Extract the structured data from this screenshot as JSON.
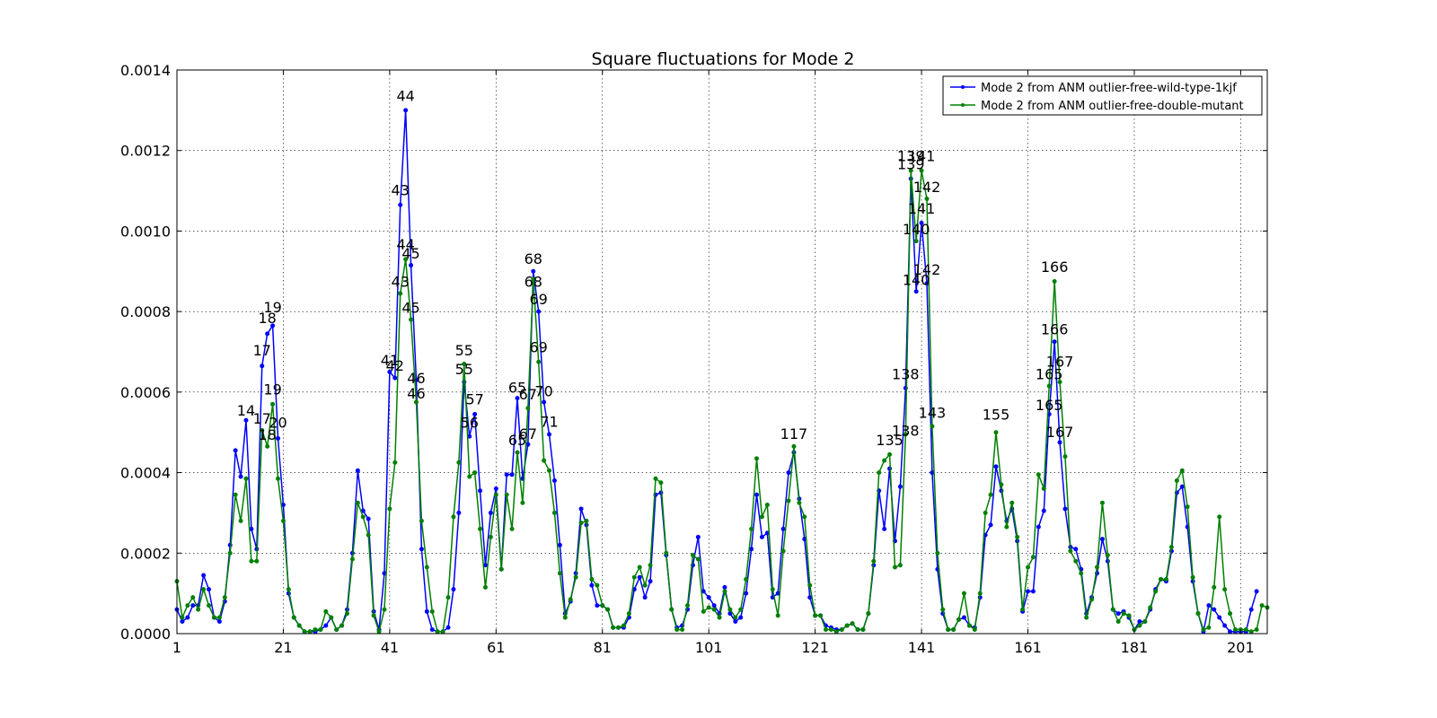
{
  "chart_data": {
    "type": "line",
    "title": "Square fluctuations for Mode 2",
    "xlabel": "",
    "ylabel": "",
    "xlim": [
      1,
      206
    ],
    "ylim": [
      0,
      0.0014
    ],
    "x_ticks": [
      "1",
      "21",
      "41",
      "61",
      "81",
      "101",
      "121",
      "141",
      "161",
      "181",
      "201"
    ],
    "x_tick_values": [
      1,
      21,
      41,
      61,
      81,
      101,
      121,
      141,
      161,
      181,
      201
    ],
    "y_ticks": [
      "0.0000",
      "0.0002",
      "0.0004",
      "0.0006",
      "0.0008",
      "0.0010",
      "0.0012",
      "0.0014"
    ],
    "y_tick_values": [
      0,
      0.0002,
      0.0004,
      0.0006,
      0.0008,
      0.001,
      0.0012,
      0.0014
    ],
    "grid": true,
    "legend_position": "top-right",
    "x_start": 1,
    "series": [
      {
        "name": "Mode 2 from ANM outlier-free-wild-type-1kjf",
        "color": "#0000ff",
        "values": [
          6e-05,
          3e-05,
          4e-05,
          7e-05,
          7e-05,
          0.000145,
          0.00011,
          4e-05,
          3e-05,
          8e-05,
          0.00022,
          0.000455,
          0.00039,
          0.00053,
          0.00026,
          0.00021,
          0.000665,
          0.000745,
          0.000765,
          0.000485,
          0.00032,
          0.0001,
          4e-05,
          2e-05,
          5e-06,
          5e-06,
          5e-06,
          1e-05,
          2e-05,
          4e-05,
          1e-05,
          2e-05,
          6e-05,
          0.0002,
          0.000405,
          0.000305,
          0.000285,
          5.5e-05,
          1e-05,
          0.00015,
          0.00065,
          0.000635,
          0.001065,
          0.0013,
          0.000915,
          0.00063,
          0.00021,
          5.5e-05,
          1e-05,
          5e-06,
          5e-06,
          1.5e-05,
          0.00011,
          0.0003,
          0.000625,
          0.00049,
          0.000545,
          0.000355,
          0.00017,
          0.0003,
          0.00036,
          0.00016,
          0.000395,
          0.000395,
          0.000585,
          0.000385,
          0.00047,
          0.0009,
          0.0008,
          0.000575,
          0.000495,
          0.00038,
          0.00022,
          5e-05,
          8e-05,
          0.00015,
          0.00031,
          0.00027,
          0.00012,
          7e-05,
          7e-05,
          6e-05,
          1.5e-05,
          1.5e-05,
          1.5e-05,
          4e-05,
          0.00011,
          0.00014,
          9e-05,
          0.00013,
          0.000345,
          0.00035,
          0.000195,
          6e-05,
          1.5e-05,
          2e-05,
          6e-05,
          0.00017,
          0.00024,
          0.000105,
          9e-05,
          7e-05,
          5e-05,
          0.000115,
          5e-05,
          3e-05,
          4e-05,
          0.0001,
          0.00021,
          0.000345,
          0.00024,
          0.00025,
          9e-05,
          0.0001,
          0.00026,
          0.0004,
          0.00045,
          0.000335,
          0.000235,
          9e-05,
          4.5e-05,
          4.5e-05,
          2e-05,
          1.5e-05,
          1e-05,
          1e-05,
          2e-05,
          2.5e-05,
          1e-05,
          1e-05,
          5e-05,
          0.00017,
          0.000355,
          0.00026,
          0.00041,
          0.00023,
          0.000365,
          0.00061,
          0.00113,
          0.00085,
          0.00102,
          0.00087,
          0.0004,
          0.00016,
          5e-05,
          1e-05,
          1e-05,
          3.5e-05,
          4e-05,
          2e-05,
          1.5e-05,
          9e-05,
          0.000245,
          0.00027,
          0.000415,
          0.000355,
          0.00028,
          0.00031,
          0.00023,
          5.5e-05,
          0.000105,
          0.000105,
          0.000265,
          0.000305,
          0.000545,
          0.000725,
          0.000475,
          0.00031,
          0.000215,
          0.00021,
          0.00016,
          5e-05,
          9e-05,
          0.00015,
          0.000235,
          0.00018,
          6e-05,
          5e-05,
          5.5e-05,
          4e-05,
          1e-05,
          3e-05,
          3e-05,
          6e-05,
          0.00011,
          0.000135,
          0.00013,
          0.000205,
          0.00035,
          0.000365,
          0.000265,
          0.00013,
          5e-05,
          5e-06,
          7e-05,
          6e-05,
          4e-05,
          2e-05,
          5e-06,
          5e-06,
          5e-06,
          5e-06,
          6e-05,
          0.000105
        ]
      },
      {
        "name": "Mode 2 from ANM outlier-free-double-mutant",
        "color": "#008000",
        "values": [
          0.00013,
          4e-05,
          7e-05,
          9e-05,
          6e-05,
          0.00011,
          7e-05,
          4e-05,
          4e-05,
          9e-05,
          0.0002,
          0.000345,
          0.00028,
          0.000385,
          0.00018,
          0.00018,
          0.000505,
          0.000465,
          0.00057,
          0.000385,
          0.00028,
          0.00011,
          4e-05,
          2e-05,
          5e-06,
          5e-06,
          1e-05,
          1e-05,
          5.5e-05,
          4e-05,
          1e-05,
          2e-05,
          5e-05,
          0.000185,
          0.000325,
          0.00029,
          0.000245,
          4.5e-05,
          5e-06,
          6e-05,
          0.00031,
          0.000425,
          0.000845,
          0.00093,
          0.00078,
          0.000575,
          0.00028,
          0.000165,
          5.5e-05,
          5e-06,
          5e-06,
          9e-05,
          0.00029,
          0.000425,
          0.00067,
          0.00039,
          0.0004,
          0.00026,
          0.000115,
          0.00024,
          0.000345,
          0.00016,
          0.000345,
          0.00026,
          0.00045,
          0.000325,
          0.00056,
          0.00088,
          0.000675,
          0.00043,
          0.000405,
          0.0003,
          0.00015,
          4e-05,
          8.5e-05,
          0.00014,
          0.000275,
          0.00028,
          0.000135,
          0.00012,
          7e-05,
          6e-05,
          1.5e-05,
          1.5e-05,
          2e-05,
          5e-05,
          0.00014,
          0.000165,
          0.00012,
          0.00017,
          0.000385,
          0.000375,
          0.0002,
          6e-05,
          1e-05,
          1e-05,
          7e-05,
          0.000195,
          0.000185,
          5.5e-05,
          6.5e-05,
          6e-05,
          4e-05,
          0.000105,
          6e-05,
          4e-05,
          6e-05,
          0.000135,
          0.00026,
          0.000435,
          0.00029,
          0.00032,
          0.00011,
          4.5e-05,
          0.000205,
          0.00033,
          0.000465,
          0.000325,
          0.00029,
          0.00012,
          4.5e-05,
          4.5e-05,
          1e-05,
          1e-05,
          5e-06,
          1e-05,
          2e-05,
          2.5e-05,
          1e-05,
          1e-05,
          5e-05,
          0.00018,
          0.0004,
          0.00043,
          0.000445,
          0.000165,
          0.00017,
          0.000495,
          0.00115,
          0.000975,
          0.00115,
          0.00108,
          0.000515,
          0.0002,
          6e-05,
          1e-05,
          1e-05,
          3.5e-05,
          0.0001,
          2e-05,
          1e-05,
          0.0001,
          0.0003,
          0.000345,
          0.0005,
          0.00037,
          0.000265,
          0.000325,
          0.00024,
          6e-05,
          0.000165,
          0.00019,
          0.000395,
          0.00036,
          0.000615,
          0.000875,
          0.000625,
          0.00044,
          0.000205,
          0.00018,
          0.00015,
          4e-05,
          8.5e-05,
          0.000165,
          0.000325,
          0.000195,
          6e-05,
          3e-05,
          5e-05,
          4.5e-05,
          1e-05,
          2e-05,
          3e-05,
          6.5e-05,
          0.000105,
          0.000135,
          0.000135,
          0.000215,
          0.00038,
          0.000405,
          0.000315,
          0.00014,
          5e-05,
          1e-05,
          1.5e-05,
          0.000115,
          0.00029,
          0.00011,
          5e-05,
          1e-05,
          1e-05,
          1e-05,
          5e-06,
          1e-05,
          7e-05,
          6.5e-05
        ]
      }
    ],
    "annotations": [
      {
        "text": "14",
        "x": 14,
        "y": 0.000555
      },
      {
        "text": "17",
        "x": 17,
        "y": 0.000705
      },
      {
        "text": "18",
        "x": 18,
        "y": 0.000785
      },
      {
        "text": "19",
        "x": 19,
        "y": 0.000812
      },
      {
        "text": "17",
        "x": 17,
        "y": 0.000535
      },
      {
        "text": "18",
        "x": 18,
        "y": 0.000495
      },
      {
        "text": "19",
        "x": 19,
        "y": 0.000607
      },
      {
        "text": "20",
        "x": 20,
        "y": 0.000525
      },
      {
        "text": "41",
        "x": 41,
        "y": 0.00068
      },
      {
        "text": "42",
        "x": 42,
        "y": 0.000667
      },
      {
        "text": "43",
        "x": 43,
        "y": 0.001102
      },
      {
        "text": "44",
        "x": 44,
        "y": 0.001337
      },
      {
        "text": "43",
        "x": 43,
        "y": 0.000875
      },
      {
        "text": "44",
        "x": 44,
        "y": 0.000967
      },
      {
        "text": "45",
        "x": 45,
        "y": 0.000945
      },
      {
        "text": "45",
        "x": 45,
        "y": 0.00081
      },
      {
        "text": "46",
        "x": 46,
        "y": 0.000635
      },
      {
        "text": "46",
        "x": 46,
        "y": 0.000598
      },
      {
        "text": "55",
        "x": 55,
        "y": 0.000705
      },
      {
        "text": "55",
        "x": 55,
        "y": 0.000658
      },
      {
        "text": "57",
        "x": 57,
        "y": 0.000583
      },
      {
        "text": "56",
        "x": 56,
        "y": 0.000525
      },
      {
        "text": "65",
        "x": 65,
        "y": 0.000612
      },
      {
        "text": "67",
        "x": 67,
        "y": 0.000595
      },
      {
        "text": "70",
        "x": 70,
        "y": 0.000603
      },
      {
        "text": "65",
        "x": 65,
        "y": 0.000482
      },
      {
        "text": "67",
        "x": 67,
        "y": 0.000497
      },
      {
        "text": "71",
        "x": 71,
        "y": 0.000527
      },
      {
        "text": "68",
        "x": 68,
        "y": 0.000932
      },
      {
        "text": "68",
        "x": 68,
        "y": 0.000875
      },
      {
        "text": "69",
        "x": 69,
        "y": 0.000832
      },
      {
        "text": "69",
        "x": 69,
        "y": 0.000712
      },
      {
        "text": "117",
        "x": 117,
        "y": 0.000497
      },
      {
        "text": "135",
        "x": 135,
        "y": 0.000482
      },
      {
        "text": "138",
        "x": 138,
        "y": 0.000645
      },
      {
        "text": "138",
        "x": 138,
        "y": 0.000505
      },
      {
        "text": "139",
        "x": 139,
        "y": 0.001187
      },
      {
        "text": "139",
        "x": 139,
        "y": 0.001167
      },
      {
        "text": "141",
        "x": 141,
        "y": 0.001187
      },
      {
        "text": "142",
        "x": 142,
        "y": 0.00111
      },
      {
        "text": "141",
        "x": 141,
        "y": 0.001057
      },
      {
        "text": "140",
        "x": 140,
        "y": 0.001005
      },
      {
        "text": "142",
        "x": 142,
        "y": 0.000905
      },
      {
        "text": "140",
        "x": 140,
        "y": 0.00088
      },
      {
        "text": "143",
        "x": 143,
        "y": 0.00055
      },
      {
        "text": "155",
        "x": 155,
        "y": 0.000545
      },
      {
        "text": "166",
        "x": 166,
        "y": 0.000912
      },
      {
        "text": "166",
        "x": 166,
        "y": 0.000757
      },
      {
        "text": "165",
        "x": 165,
        "y": 0.000645
      },
      {
        "text": "167",
        "x": 167,
        "y": 0.000677
      },
      {
        "text": "165",
        "x": 165,
        "y": 0.000568
      },
      {
        "text": "167",
        "x": 167,
        "y": 0.000502
      }
    ]
  }
}
